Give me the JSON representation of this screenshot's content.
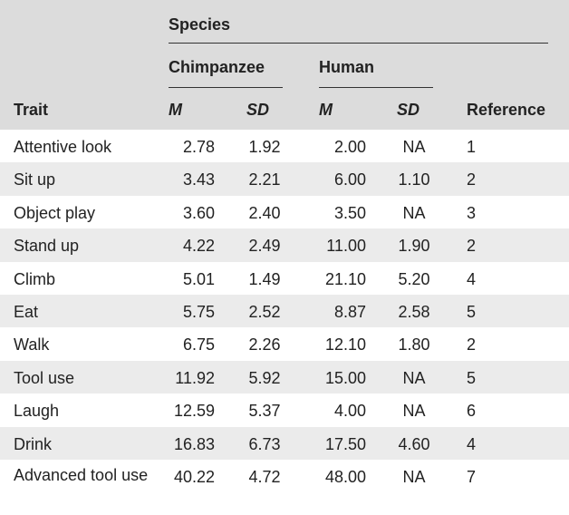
{
  "header": {
    "species": "Species",
    "chimpanzee": "Chimpanzee",
    "human": "Human",
    "columns": [
      "Trait",
      "M",
      "SD",
      "M",
      "SD",
      "Reference"
    ]
  },
  "table": {
    "rows": [
      [
        "Attentive look",
        "2.78",
        "1.92",
        "2.00",
        "NA",
        "1"
      ],
      [
        "Sit up",
        "3.43",
        "2.21",
        "6.00",
        "1.10",
        "2"
      ],
      [
        "Object play",
        "3.60",
        "2.40",
        "3.50",
        "NA",
        "3"
      ],
      [
        "Stand up",
        "4.22",
        "2.49",
        "11.00",
        "1.90",
        "2"
      ],
      [
        "Climb",
        "5.01",
        "1.49",
        "21.10",
        "5.20",
        "4"
      ],
      [
        "Eat",
        "5.75",
        "2.52",
        "8.87",
        "2.58",
        "5"
      ],
      [
        "Walk",
        "6.75",
        "2.26",
        "12.10",
        "1.80",
        "2"
      ],
      [
        "Tool use",
        "11.92",
        "5.92",
        "15.00",
        "NA",
        "5"
      ],
      [
        "Laugh",
        "12.59",
        "5.37",
        "4.00",
        "NA",
        "6"
      ],
      [
        "Drink",
        "16.83",
        "6.73",
        "17.50",
        "4.60",
        "4"
      ],
      [
        "Advanced tool use",
        "40.22",
        "4.72",
        "48.00",
        "NA",
        "7"
      ]
    ]
  }
}
